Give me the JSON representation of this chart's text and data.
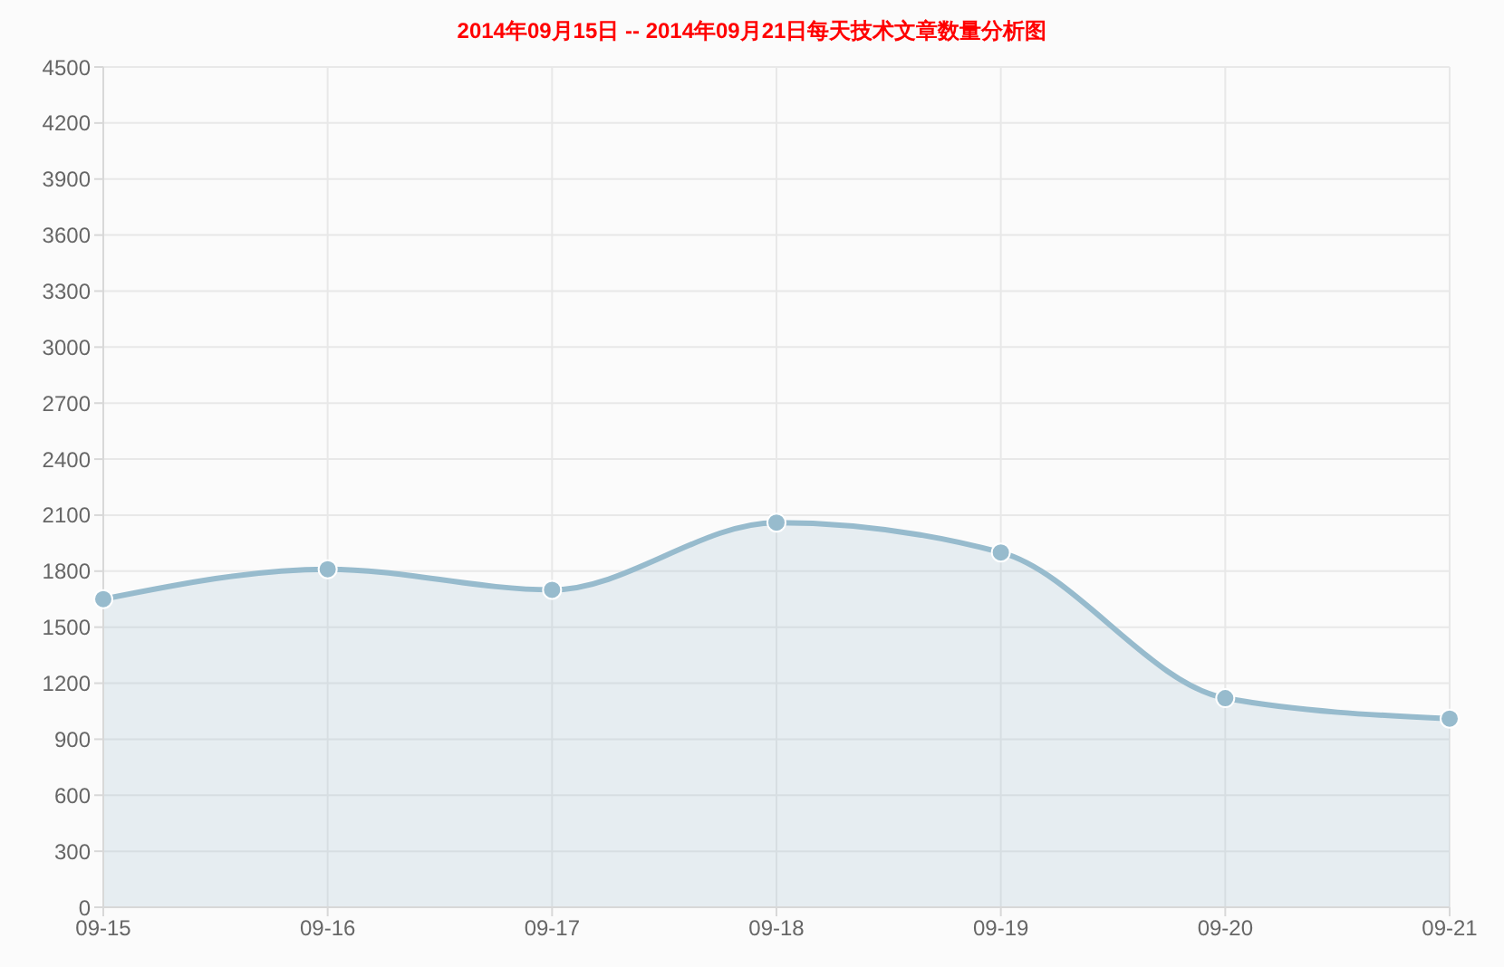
{
  "chart_data": {
    "type": "area",
    "title": "2014年09月15日 -- 2014年09月21日每天技术文章数量分析图",
    "categories": [
      "09-15",
      "09-16",
      "09-17",
      "09-18",
      "09-19",
      "09-20",
      "09-21"
    ],
    "series": [
      {
        "color": "#97bbcd",
        "values": [
          1650,
          1810,
          1700,
          2060,
          1900,
          1120,
          1010
        ]
      }
    ],
    "ylim": [
      0,
      4500
    ],
    "yticks": [
      0,
      300,
      600,
      900,
      1200,
      1500,
      1800,
      2100,
      2400,
      2700,
      3000,
      3300,
      3600,
      3900,
      4200,
      4500
    ],
    "grid": true,
    "marker": "circle",
    "line_style": "solid"
  }
}
